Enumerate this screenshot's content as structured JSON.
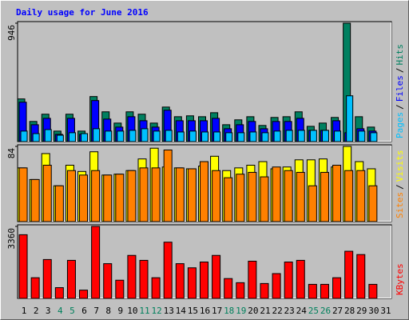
{
  "chart_data": [
    {
      "type": "bar",
      "title": "Daily usage for June 2016",
      "ylim": [
        0,
        946
      ],
      "yticks": [
        946
      ],
      "legend_separator": "/",
      "series": [
        {
          "name": "Hits",
          "color": "#008060",
          "values": [
            341,
            161,
            219,
            84,
            219,
            84,
            360,
            238,
            148,
            238,
            219,
            148,
            276,
            199,
            206,
            199,
            231,
            135,
            174,
            199,
            129,
            193,
            199,
            238,
            122,
            148,
            193,
            946,
            199,
            116,
            null
          ]
        },
        {
          "name": "Files",
          "color": "#0000ff",
          "values": [
            315,
            135,
            186,
            58,
            186,
            58,
            328,
            180,
            116,
            199,
            167,
            116,
            251,
            167,
            167,
            167,
            186,
            103,
            135,
            161,
            103,
            161,
            161,
            186,
            90,
            90,
            167,
            71,
            103,
            84,
            null
          ]
        },
        {
          "name": "Pages",
          "color": "#00c0ff",
          "values": [
            84,
            64,
            96,
            51,
            71,
            64,
            103,
            84,
            84,
            90,
            103,
            84,
            90,
            77,
            84,
            77,
            77,
            71,
            71,
            77,
            71,
            84,
            90,
            90,
            90,
            90,
            84,
            366,
            84,
            71,
            null
          ]
        }
      ]
    },
    {
      "type": "bar",
      "ylim": [
        0,
        84
      ],
      "yticks": [
        84
      ],
      "legend_separator": "/",
      "series": [
        {
          "name": "Visits",
          "color": "#ffff00",
          "values": [
            60,
            47,
            76,
            40,
            63,
            56,
            78,
            52,
            53,
            57,
            70,
            82,
            61,
            60,
            59,
            62,
            73,
            57,
            60,
            63,
            67,
            59,
            61,
            69,
            69,
            70,
            61,
            84,
            67,
            59,
            null
          ]
        },
        {
          "name": "Sites",
          "color": "#ff8000",
          "values": [
            60,
            47,
            63,
            40,
            57,
            52,
            57,
            52,
            53,
            57,
            60,
            60,
            80,
            60,
            59,
            67,
            57,
            49,
            53,
            55,
            50,
            61,
            57,
            55,
            40,
            55,
            63,
            57,
            57,
            40,
            null
          ]
        }
      ]
    },
    {
      "type": "bar",
      "ylim": [
        0,
        3360
      ],
      "yticks": [
        3360
      ],
      "categories": [
        "1",
        "2",
        "3",
        "4",
        "5",
        "6",
        "7",
        "8",
        "9",
        "10",
        "11",
        "12",
        "13",
        "14",
        "15",
        "16",
        "17",
        "18",
        "19",
        "20",
        "21",
        "22",
        "23",
        "24",
        "25",
        "26",
        "27",
        "28",
        "29",
        "30",
        "31"
      ],
      "category_colors": [
        "#000000",
        "#000000",
        "#000000",
        "#00805c",
        "#00805c",
        "#000000",
        "#000000",
        "#000000",
        "#000000",
        "#000000",
        "#00805c",
        "#00805c",
        "#000000",
        "#000000",
        "#000000",
        "#000000",
        "#000000",
        "#00805c",
        "#00805c",
        "#000000",
        "#000000",
        "#000000",
        "#000000",
        "#000000",
        "#00805c",
        "#00805c",
        "#000000",
        "#000000",
        "#000000",
        "#000000",
        "#000000"
      ],
      "series": [
        {
          "name": "KBytes",
          "color": "#ff0000",
          "values": [
            2972,
            965,
            1814,
            502,
            1776,
            386,
            3360,
            1621,
            849,
            2007,
            1776,
            965,
            2625,
            1621,
            1428,
            1698,
            2007,
            926,
            733,
            1737,
            695,
            1158,
            1698,
            1776,
            656,
            656,
            965,
            2200,
            2046,
            656,
            null
          ]
        }
      ]
    }
  ]
}
